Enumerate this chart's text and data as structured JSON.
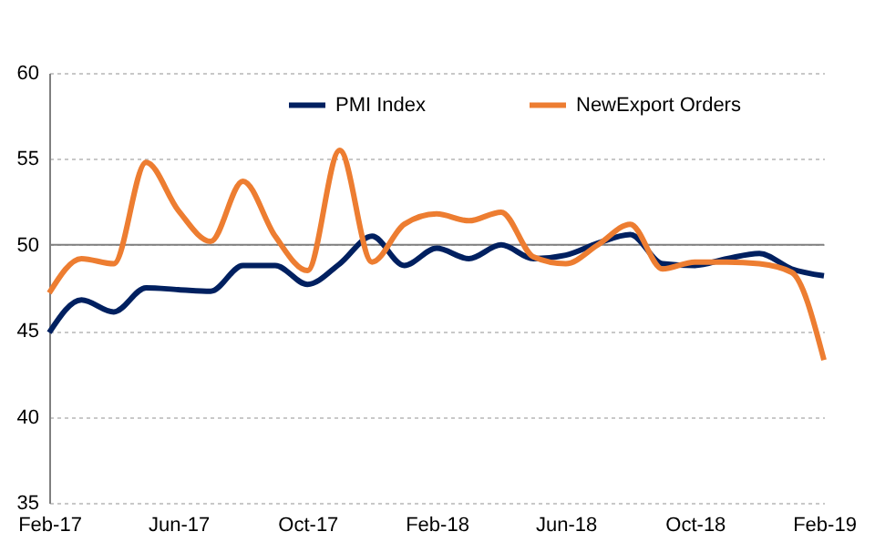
{
  "chart_data": {
    "type": "line",
    "categories": [
      "Feb-17",
      null,
      null,
      null,
      "Jun-17",
      null,
      null,
      null,
      "Oct-17",
      null,
      null,
      null,
      "Feb-18",
      null,
      null,
      null,
      "Jun-18",
      null,
      null,
      null,
      "Oct-18",
      null,
      null,
      null,
      "Feb-19"
    ],
    "series": [
      {
        "name": "PMI Index",
        "color": "#002060",
        "values": [
          44.9,
          46.8,
          46.1,
          47.5,
          47.4,
          47.3,
          48.8,
          48.8,
          47.7,
          48.9,
          50.5,
          48.8,
          49.8,
          49.2,
          50.0,
          49.2,
          49.4,
          50.1,
          50.6,
          48.9,
          48.8,
          49.2,
          49.5,
          48.6,
          48.2
        ]
      },
      {
        "name": "NewExport Orders",
        "color": "#ed7d31",
        "values": [
          47.2,
          49.2,
          48.9,
          54.8,
          52.0,
          50.2,
          53.7,
          50.5,
          48.5,
          55.5,
          49.0,
          51.2,
          51.8,
          51.4,
          51.9,
          49.3,
          48.9,
          50.0,
          51.2,
          48.6,
          49.0,
          49.0,
          48.9,
          48.4,
          43.3
        ]
      }
    ],
    "ylim": [
      35,
      60
    ],
    "yticks": [
      35,
      40,
      45,
      50,
      55,
      60
    ],
    "grid": "y",
    "legend": "top",
    "ref_lines": [
      {
        "axis": "y",
        "value": 50
      }
    ]
  }
}
